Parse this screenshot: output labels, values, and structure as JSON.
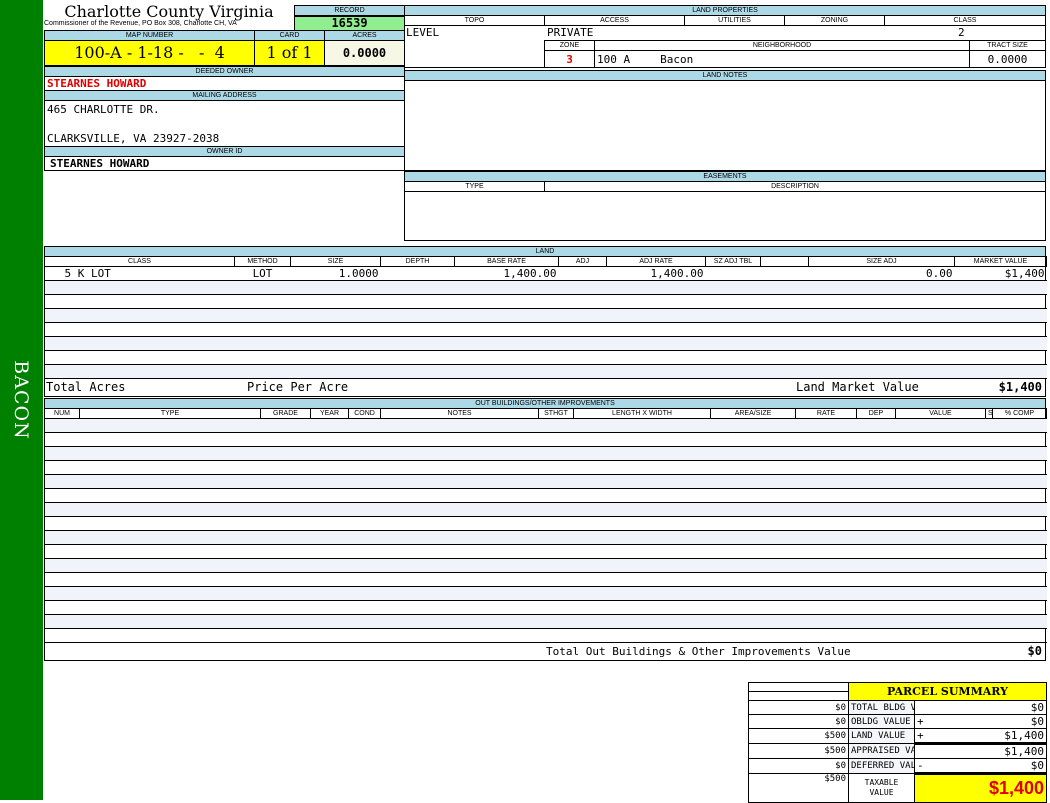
{
  "sidebar": {
    "label": "BACON"
  },
  "header": {
    "title": "Charlotte County Virginia",
    "subtitle": "Commissioner of the Revenue, PO Box 308, Charlotte CH, VA"
  },
  "record": {
    "label": "RECORD",
    "value": "16539"
  },
  "map": {
    "map_label": "MAP NUMBER",
    "map_value": "100-A - 1-18 -   -  4",
    "card_label": "CARD",
    "card_value": "1 of 1",
    "acres_label": "ACRES",
    "acres_value": "0.0000"
  },
  "owner": {
    "deeded_label": "DEEDED OWNER",
    "deeded_value": "STEARNES HOWARD",
    "mailing_label": "MAILING ADDRESS",
    "address_line1": "465 CHARLOTTE DR.",
    "address_line2": "CLARKSVILLE, VA 23927-2038",
    "owner_id_label": "OWNER ID",
    "owner_id_value": "STEARNES HOWARD"
  },
  "land_properties": {
    "title": "LAND PROPERTIES",
    "topo_label": "TOPO",
    "access_label": "ACCESS",
    "utilities_label": "UTILITIES",
    "zoning_label": "ZONING",
    "class_label": "CLASS",
    "topo": "LEVEL",
    "access": "PRIVATE",
    "utilities": "",
    "zoning": "",
    "class": "2",
    "zone_label": "ZONE",
    "neighborhood_label": "NEIGHBORHOOD",
    "tract_label": "TRACT SIZE",
    "zone": "3",
    "neighborhood_code": "100 A",
    "neighborhood_name": "Bacon",
    "tract_size": "0.0000"
  },
  "land_notes": {
    "title": "LAND NOTES"
  },
  "easements": {
    "title": "EASEMENTS",
    "type_label": "TYPE",
    "description_label": "DESCRIPTION"
  },
  "land": {
    "title": "LAND",
    "columns": [
      "CLASS",
      "METHOD",
      "SIZE",
      "DEPTH",
      "BASE RATE",
      "ADJ",
      "ADJ RATE",
      "SZ ADJ TBL",
      "",
      "Size Adj",
      "MARKET VALUE"
    ],
    "rows": [
      [
        "5 K LOT",
        "LOT",
        "1.0000",
        "",
        "1,400.00",
        "",
        "1,400.00",
        "",
        "",
        "0.00",
        "$1,400"
      ]
    ],
    "total_acres_label": "Total Acres",
    "price_per_acre_label": "Price Per Acre",
    "market_value_label": "Land Market Value",
    "market_value": "$1,400"
  },
  "outbuildings": {
    "title": "OUT BUILDINGS/OTHER IMPROVEMENTS",
    "columns": [
      "NUM",
      "TYPE",
      "GRADE",
      "YEAR",
      "COND",
      "NOTES",
      "STHGT",
      "LENGTH X WIDTH",
      "AREA/SIZE",
      "RATE",
      "DEP",
      "VALUE",
      "S",
      "% COMP"
    ],
    "rows": [],
    "total_label": "Total Out Buildings & Other Improvements Value",
    "total_value": "$0"
  },
  "summary": {
    "title": "PARCEL SUMMARY",
    "rows": [
      {
        "prior": "$0",
        "label": "TOTAL BLDG VALUE",
        "op": "",
        "value": "$0"
      },
      {
        "prior": "$0",
        "label": "OBLDG VALUE",
        "op": "+",
        "value": "$0"
      },
      {
        "prior": "$500",
        "label": "LAND VALUE",
        "op": "+",
        "value": "$1,400"
      },
      {
        "prior": "$500",
        "label": "APPRAISED VALUE",
        "op": "",
        "value": "$1,400"
      },
      {
        "prior": "$0",
        "label": "DEFERRED VALUE",
        "op": "-",
        "value": "$0"
      }
    ],
    "taxable_prior": "$500",
    "taxable_label": "TAXABLE VALUE",
    "taxable_value": "$1,400"
  },
  "colors": {
    "sidebar": "#008000",
    "header_band": "#add8e6",
    "record_bg": "#90ee90",
    "highlight": "#ffff00",
    "owner_red": "#e00000"
  }
}
